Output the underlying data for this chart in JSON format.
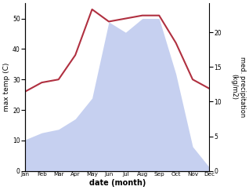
{
  "months": [
    "Jan",
    "Feb",
    "Mar",
    "Apr",
    "May",
    "Jun",
    "Jul",
    "Aug",
    "Sep",
    "Oct",
    "Nov",
    "Dec"
  ],
  "temp": [
    26,
    29,
    30,
    38,
    53,
    49,
    50,
    51,
    51,
    42,
    30,
    27
  ],
  "precip": [
    4.5,
    5.5,
    6.0,
    7.5,
    10.5,
    21.5,
    20.0,
    22.0,
    22.0,
    14.0,
    3.5,
    0.5
  ],
  "temp_color": "#b03040",
  "precip_color": "#a8b8e8",
  "precip_alpha": 0.65,
  "ylabel_left": "max temp (C)",
  "ylabel_right": "med. precipitation\n(kg/m2)",
  "xlabel": "date (month)",
  "ylim_left": [
    0,
    55
  ],
  "ylim_right": [
    0,
    24.2
  ],
  "yticks_left": [
    0,
    10,
    20,
    30,
    40,
    50
  ],
  "yticks_right": [
    0,
    5,
    10,
    15,
    20
  ],
  "bg_color": "#ffffff"
}
